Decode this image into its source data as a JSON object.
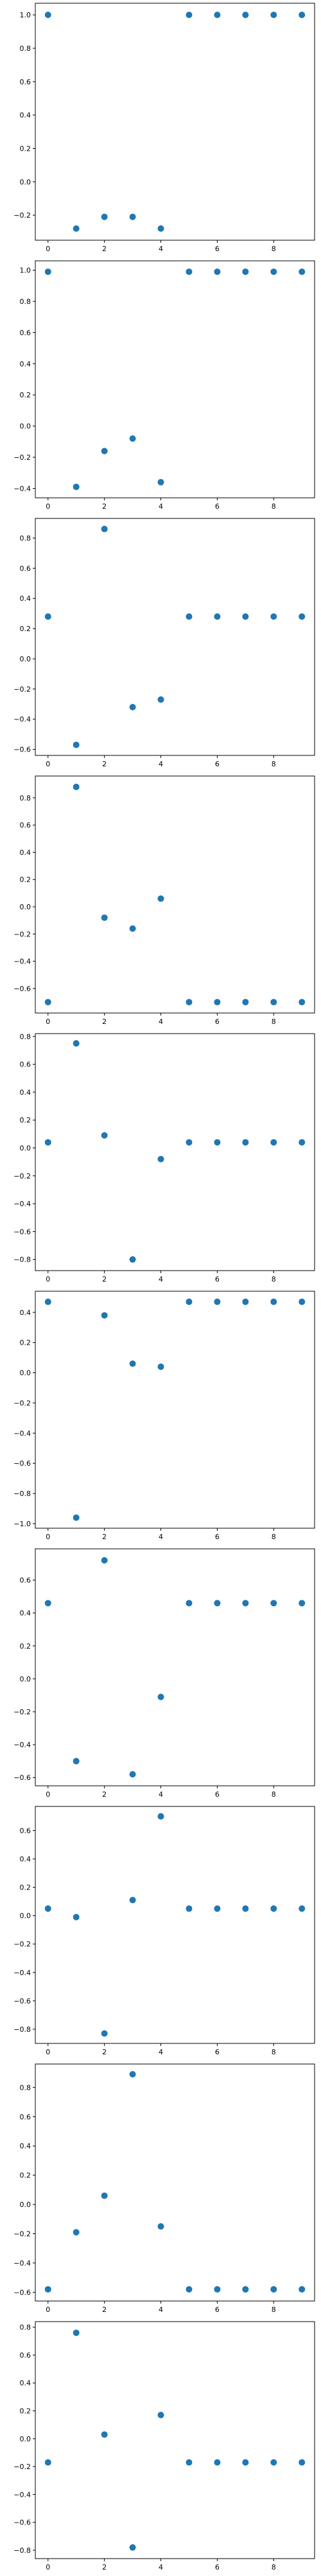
{
  "chart_data": [
    {
      "type": "scatter",
      "x": [
        0,
        1,
        2,
        3,
        4,
        5,
        6,
        7,
        8,
        9
      ],
      "y": [
        1.0,
        -0.28,
        -0.21,
        -0.21,
        -0.28,
        1.0,
        1.0,
        1.0,
        1.0,
        1.0
      ],
      "xlim": [
        -0.45,
        9.45
      ],
      "ylim": [
        -0.35,
        1.07
      ],
      "xticks": [
        0,
        2,
        4,
        6,
        8
      ],
      "yticks": [
        -0.2,
        0.0,
        0.2,
        0.4,
        0.6,
        0.8,
        1.0
      ],
      "xtick_labels": [
        "0",
        "2",
        "4",
        "6",
        "8"
      ],
      "ytick_labels": [
        "−0.2",
        "0.0",
        "0.2",
        "0.4",
        "0.6",
        "0.8",
        "1.0"
      ],
      "grid": false,
      "color": "#1f77b4"
    },
    {
      "type": "scatter",
      "x": [
        0,
        1,
        2,
        3,
        4,
        5,
        6,
        7,
        8,
        9
      ],
      "y": [
        0.99,
        -0.39,
        -0.16,
        -0.08,
        -0.36,
        0.99,
        0.99,
        0.99,
        0.99,
        0.99
      ],
      "xlim": [
        -0.45,
        9.45
      ],
      "ylim": [
        -0.46,
        1.06
      ],
      "xticks": [
        0,
        2,
        4,
        6,
        8
      ],
      "yticks": [
        -0.4,
        -0.2,
        0.0,
        0.2,
        0.4,
        0.6,
        0.8,
        1.0
      ],
      "xtick_labels": [
        "0",
        "2",
        "4",
        "6",
        "8"
      ],
      "ytick_labels": [
        "−0.4",
        "−0.2",
        "0.0",
        "0.2",
        "0.4",
        "0.6",
        "0.8",
        "1.0"
      ],
      "grid": false,
      "color": "#1f77b4"
    },
    {
      "type": "scatter",
      "x": [
        0,
        1,
        2,
        3,
        4,
        5,
        6,
        7,
        8,
        9
      ],
      "y": [
        0.28,
        -0.57,
        0.86,
        -0.32,
        -0.27,
        0.28,
        0.28,
        0.28,
        0.28,
        0.28
      ],
      "xlim": [
        -0.45,
        9.45
      ],
      "ylim": [
        -0.64,
        0.93
      ],
      "xticks": [
        0,
        2,
        4,
        6,
        8
      ],
      "yticks": [
        -0.6,
        -0.4,
        -0.2,
        0.0,
        0.2,
        0.4,
        0.6,
        0.8
      ],
      "xtick_labels": [
        "0",
        "2",
        "4",
        "6",
        "8"
      ],
      "ytick_labels": [
        "−0.6",
        "−0.4",
        "−0.2",
        "0.0",
        "0.2",
        "0.4",
        "0.6",
        "0.8"
      ],
      "grid": false,
      "color": "#1f77b4"
    },
    {
      "type": "scatter",
      "x": [
        0,
        1,
        2,
        3,
        4,
        5,
        6,
        7,
        8,
        9
      ],
      "y": [
        -0.7,
        0.88,
        -0.08,
        -0.16,
        0.06,
        -0.7,
        -0.7,
        -0.7,
        -0.7,
        -0.7
      ],
      "xlim": [
        -0.45,
        9.45
      ],
      "ylim": [
        -0.78,
        0.96
      ],
      "xticks": [
        0,
        2,
        4,
        6,
        8
      ],
      "yticks": [
        -0.6,
        -0.4,
        -0.2,
        0.0,
        0.2,
        0.4,
        0.6,
        0.8
      ],
      "xtick_labels": [
        "0",
        "2",
        "4",
        "6",
        "8"
      ],
      "ytick_labels": [
        "−0.6",
        "−0.4",
        "−0.2",
        "0.0",
        "0.2",
        "0.4",
        "0.6",
        "0.8"
      ],
      "grid": false,
      "color": "#1f77b4"
    },
    {
      "type": "scatter",
      "x": [
        0,
        1,
        2,
        3,
        4,
        5,
        6,
        7,
        8,
        9
      ],
      "y": [
        0.04,
        0.75,
        0.09,
        -0.8,
        -0.08,
        0.04,
        0.04,
        0.04,
        0.04,
        0.04
      ],
      "xlim": [
        -0.45,
        9.45
      ],
      "ylim": [
        -0.88,
        0.82
      ],
      "xticks": [
        0,
        2,
        4,
        6,
        8
      ],
      "yticks": [
        -0.8,
        -0.6,
        -0.4,
        -0.2,
        0.0,
        0.2,
        0.4,
        0.6,
        0.8
      ],
      "xtick_labels": [
        "0",
        "2",
        "4",
        "6",
        "8"
      ],
      "ytick_labels": [
        "−0.8",
        "−0.6",
        "−0.4",
        "−0.2",
        "0.0",
        "0.2",
        "0.4",
        "0.6",
        "0.8"
      ],
      "grid": false,
      "color": "#1f77b4"
    },
    {
      "type": "scatter",
      "x": [
        0,
        1,
        2,
        3,
        4,
        5,
        6,
        7,
        8,
        9
      ],
      "y": [
        0.47,
        -0.96,
        0.38,
        0.06,
        0.04,
        0.47,
        0.47,
        0.47,
        0.47,
        0.47
      ],
      "xlim": [
        -0.45,
        9.45
      ],
      "ylim": [
        -1.03,
        0.54
      ],
      "xticks": [
        0,
        2,
        4,
        6,
        8
      ],
      "yticks": [
        -1.0,
        -0.8,
        -0.6,
        -0.4,
        -0.2,
        0.0,
        0.2,
        0.4
      ],
      "xtick_labels": [
        "0",
        "2",
        "4",
        "6",
        "8"
      ],
      "ytick_labels": [
        "−1.0",
        "−0.8",
        "−0.6",
        "−0.4",
        "−0.2",
        "0.0",
        "0.2",
        "0.4"
      ],
      "grid": false,
      "color": "#1f77b4"
    },
    {
      "type": "scatter",
      "x": [
        0,
        1,
        2,
        3,
        4,
        5,
        6,
        7,
        8,
        9
      ],
      "y": [
        0.46,
        -0.5,
        0.72,
        -0.58,
        -0.11,
        0.46,
        0.46,
        0.46,
        0.46,
        0.46
      ],
      "xlim": [
        -0.45,
        9.45
      ],
      "ylim": [
        -0.65,
        0.79
      ],
      "xticks": [
        0,
        2,
        4,
        6,
        8
      ],
      "yticks": [
        -0.6,
        -0.4,
        -0.2,
        0.0,
        0.2,
        0.4,
        0.6
      ],
      "xtick_labels": [
        "0",
        "2",
        "4",
        "6",
        "8"
      ],
      "ytick_labels": [
        "−0.6",
        "−0.4",
        "−0.2",
        "0.0",
        "0.2",
        "0.4",
        "0.6"
      ],
      "grid": false,
      "color": "#1f77b4"
    },
    {
      "type": "scatter",
      "x": [
        0,
        1,
        2,
        3,
        4,
        5,
        6,
        7,
        8,
        9
      ],
      "y": [
        0.05,
        -0.01,
        -0.83,
        0.11,
        0.7,
        0.05,
        0.05,
        0.05,
        0.05,
        0.05
      ],
      "xlim": [
        -0.45,
        9.45
      ],
      "ylim": [
        -0.9,
        0.77
      ],
      "xticks": [
        0,
        2,
        4,
        6,
        8
      ],
      "yticks": [
        -0.8,
        -0.6,
        -0.4,
        -0.2,
        0.0,
        0.2,
        0.4,
        0.6
      ],
      "xtick_labels": [
        "0",
        "2",
        "4",
        "6",
        "8"
      ],
      "ytick_labels": [
        "−0.8",
        "−0.6",
        "−0.4",
        "−0.2",
        "0.0",
        "0.2",
        "0.4",
        "0.6"
      ],
      "grid": false,
      "color": "#1f77b4"
    },
    {
      "type": "scatter",
      "x": [
        0,
        1,
        2,
        3,
        4,
        5,
        6,
        7,
        8,
        9
      ],
      "y": [
        -0.58,
        -0.19,
        0.06,
        0.89,
        -0.15,
        -0.58,
        -0.58,
        -0.58,
        -0.58,
        -0.58
      ],
      "xlim": [
        -0.45,
        9.45
      ],
      "ylim": [
        -0.66,
        0.96
      ],
      "xticks": [
        0,
        2,
        4,
        6,
        8
      ],
      "yticks": [
        -0.6,
        -0.4,
        -0.2,
        0.0,
        0.2,
        0.4,
        0.6,
        0.8
      ],
      "xtick_labels": [
        "0",
        "2",
        "4",
        "6",
        "8"
      ],
      "ytick_labels": [
        "−0.6",
        "−0.4",
        "−0.2",
        "0.0",
        "0.2",
        "0.4",
        "0.6",
        "0.8"
      ],
      "grid": false,
      "color": "#1f77b4"
    },
    {
      "type": "scatter",
      "x": [
        0,
        1,
        2,
        3,
        4,
        5,
        6,
        7,
        8,
        9
      ],
      "y": [
        -0.17,
        0.76,
        0.03,
        -0.78,
        0.17,
        -0.17,
        -0.17,
        -0.17,
        -0.17,
        -0.17
      ],
      "xlim": [
        -0.45,
        9.45
      ],
      "ylim": [
        -0.86,
        0.84
      ],
      "xticks": [
        0,
        2,
        4,
        6,
        8
      ],
      "yticks": [
        -0.8,
        -0.6,
        -0.4,
        -0.2,
        0.0,
        0.2,
        0.4,
        0.6,
        0.8
      ],
      "xtick_labels": [
        "0",
        "2",
        "4",
        "6",
        "8"
      ],
      "ytick_labels": [
        "−0.8",
        "−0.6",
        "−0.4",
        "−0.2",
        "0.0",
        "0.2",
        "0.4",
        "0.6",
        "0.8"
      ],
      "grid": false,
      "color": "#1f77b4"
    }
  ]
}
